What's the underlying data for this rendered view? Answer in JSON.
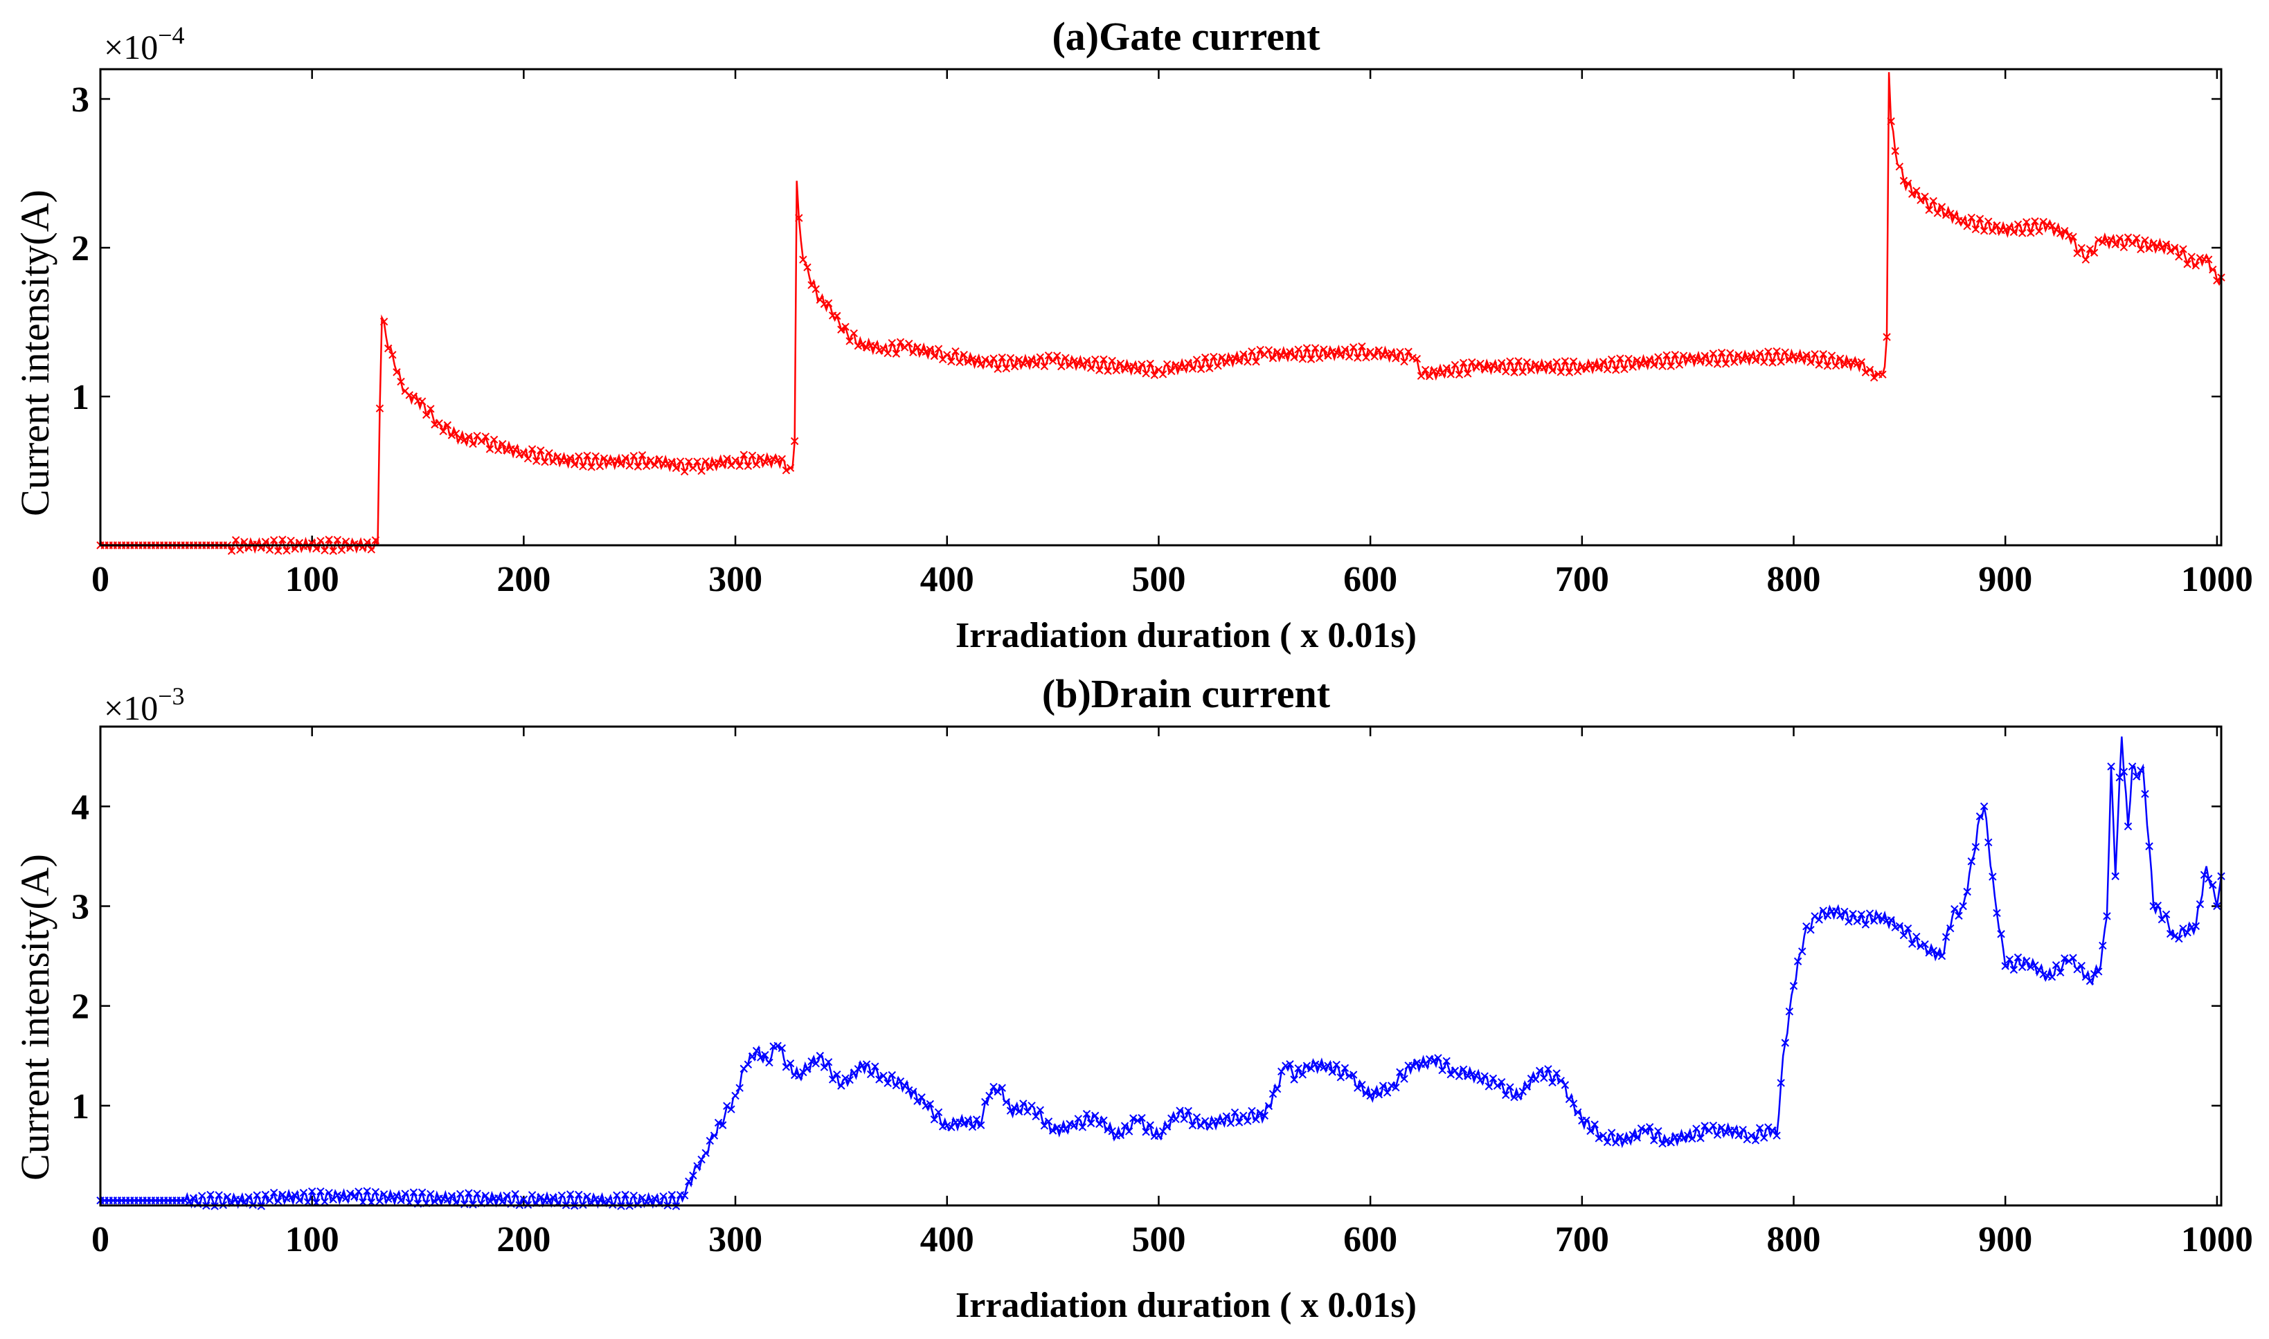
{
  "chart_data": [
    {
      "type": "line",
      "title": "(a)Gate current",
      "xlabel": "Irradiation duration ( x 0.01s)",
      "ylabel": "Current intensity(A)",
      "exponent_label": "×10",
      "exponent_power": "−4",
      "xlim": [
        0,
        1002
      ],
      "ylim": [
        0,
        3.2
      ],
      "xticks": [
        0,
        100,
        200,
        300,
        400,
        500,
        600,
        700,
        800,
        900,
        1000
      ],
      "xtick_labels": [
        "0",
        "100",
        "200",
        "300",
        "400",
        "500",
        "600",
        "700",
        "800",
        "900",
        "1000"
      ],
      "yticks": [
        1,
        2,
        3
      ],
      "ytick_labels": [
        "1",
        "2",
        "3"
      ],
      "marker": "x",
      "color": "#ff0000",
      "series": [
        {
          "name": "Gate current",
          "x": [
            0,
            60,
            131,
            132,
            133,
            135,
            138,
            142,
            145,
            150,
            160,
            170,
            180,
            200,
            220,
            240,
            260,
            280,
            290,
            300,
            320,
            326,
            327,
            328,
            329,
            330,
            332,
            335,
            340,
            345,
            350,
            360,
            370,
            380,
            400,
            420,
            450,
            500,
            550,
            600,
            620,
            625,
            650,
            700,
            750,
            800,
            830,
            836,
            840,
            843,
            844,
            845,
            846,
            848,
            852,
            860,
            880,
            900,
            920,
            930,
            938,
            945,
            960,
            980,
            990,
            995,
            1000,
            1002
          ],
          "y": [
            0,
            0,
            0,
            0.92,
            1.53,
            1.4,
            1.28,
            1.1,
            1.02,
            0.97,
            0.82,
            0.72,
            0.7,
            0.62,
            0.57,
            0.56,
            0.57,
            0.52,
            0.55,
            0.57,
            0.57,
            0.52,
            0.52,
            0.7,
            2.45,
            2.2,
            1.92,
            1.8,
            1.65,
            1.6,
            1.45,
            1.35,
            1.32,
            1.33,
            1.28,
            1.22,
            1.24,
            1.18,
            1.28,
            1.3,
            1.26,
            1.15,
            1.2,
            1.2,
            1.25,
            1.27,
            1.22,
            1.18,
            1.15,
            1.2,
            1.4,
            3.18,
            2.85,
            2.65,
            2.45,
            2.32,
            2.18,
            2.12,
            2.15,
            2.08,
            1.92,
            2.05,
            2.03,
            2.0,
            1.88,
            1.95,
            1.78,
            1.8
          ]
        }
      ]
    },
    {
      "type": "line",
      "title": "(b)Drain current",
      "xlabel": "Irradiation duration ( x 0.01s)",
      "ylabel": "Current intensity(A)",
      "exponent_label": "×10",
      "exponent_power": "−3",
      "xlim": [
        0,
        1002
      ],
      "ylim": [
        0,
        4.8
      ],
      "xticks": [
        0,
        100,
        200,
        300,
        400,
        500,
        600,
        700,
        800,
        900,
        1000
      ],
      "xtick_labels": [
        "0",
        "100",
        "200",
        "300",
        "400",
        "500",
        "600",
        "700",
        "800",
        "900",
        "1000"
      ],
      "yticks": [
        1,
        2,
        3,
        4
      ],
      "ytick_labels": [
        "1",
        "2",
        "3",
        "4"
      ],
      "marker": "x",
      "color": "#0000ff",
      "series": [
        {
          "name": "Drain current",
          "x": [
            0,
            40,
            80,
            81,
            120,
            160,
            200,
            240,
            275,
            276,
            280,
            285,
            290,
            295,
            300,
            305,
            310,
            315,
            320,
            325,
            330,
            340,
            350,
            360,
            370,
            380,
            390,
            400,
            410,
            415,
            420,
            425,
            430,
            440,
            450,
            460,
            470,
            480,
            490,
            500,
            510,
            520,
            530,
            540,
            550,
            560,
            565,
            570,
            580,
            590,
            600,
            610,
            620,
            630,
            640,
            650,
            660,
            670,
            680,
            690,
            700,
            710,
            720,
            730,
            740,
            750,
            760,
            770,
            780,
            790,
            792,
            795,
            800,
            805,
            810,
            820,
            830,
            840,
            850,
            860,
            870,
            875,
            880,
            885,
            888,
            890,
            895,
            900,
            910,
            920,
            930,
            935,
            940,
            945,
            948,
            950,
            952,
            955,
            958,
            960,
            962,
            965,
            968,
            970,
            975,
            980,
            990,
            995,
            1000,
            1002
          ],
          "y": [
            0.05,
            0.05,
            0.05,
            0.08,
            0.09,
            0.07,
            0.06,
            0.05,
            0.05,
            0.1,
            0.3,
            0.5,
            0.7,
            0.9,
            1.1,
            1.4,
            1.55,
            1.45,
            1.6,
            1.4,
            1.3,
            1.5,
            1.2,
            1.4,
            1.3,
            1.2,
            1.0,
            0.8,
            0.85,
            0.8,
            1.1,
            1.2,
            0.95,
            1.0,
            0.75,
            0.8,
            0.9,
            0.7,
            0.85,
            0.7,
            0.95,
            0.8,
            0.85,
            0.9,
            0.9,
            1.4,
            1.3,
            1.4,
            1.4,
            1.3,
            1.1,
            1.2,
            1.4,
            1.45,
            1.35,
            1.3,
            1.2,
            1.1,
            1.35,
            1.25,
            0.85,
            0.7,
            0.65,
            0.75,
            0.65,
            0.7,
            0.75,
            0.75,
            0.7,
            0.75,
            0.7,
            1.5,
            2.2,
            2.7,
            2.9,
            2.95,
            2.85,
            2.9,
            2.8,
            2.6,
            2.5,
            2.9,
            3.0,
            3.5,
            3.9,
            4.0,
            3.1,
            2.4,
            2.45,
            2.3,
            2.45,
            2.4,
            2.25,
            2.4,
            2.9,
            4.4,
            3.3,
            4.7,
            3.8,
            4.4,
            4.3,
            4.4,
            3.6,
            3.0,
            2.9,
            2.7,
            2.8,
            3.4,
            3.0,
            3.3
          ]
        }
      ]
    }
  ]
}
